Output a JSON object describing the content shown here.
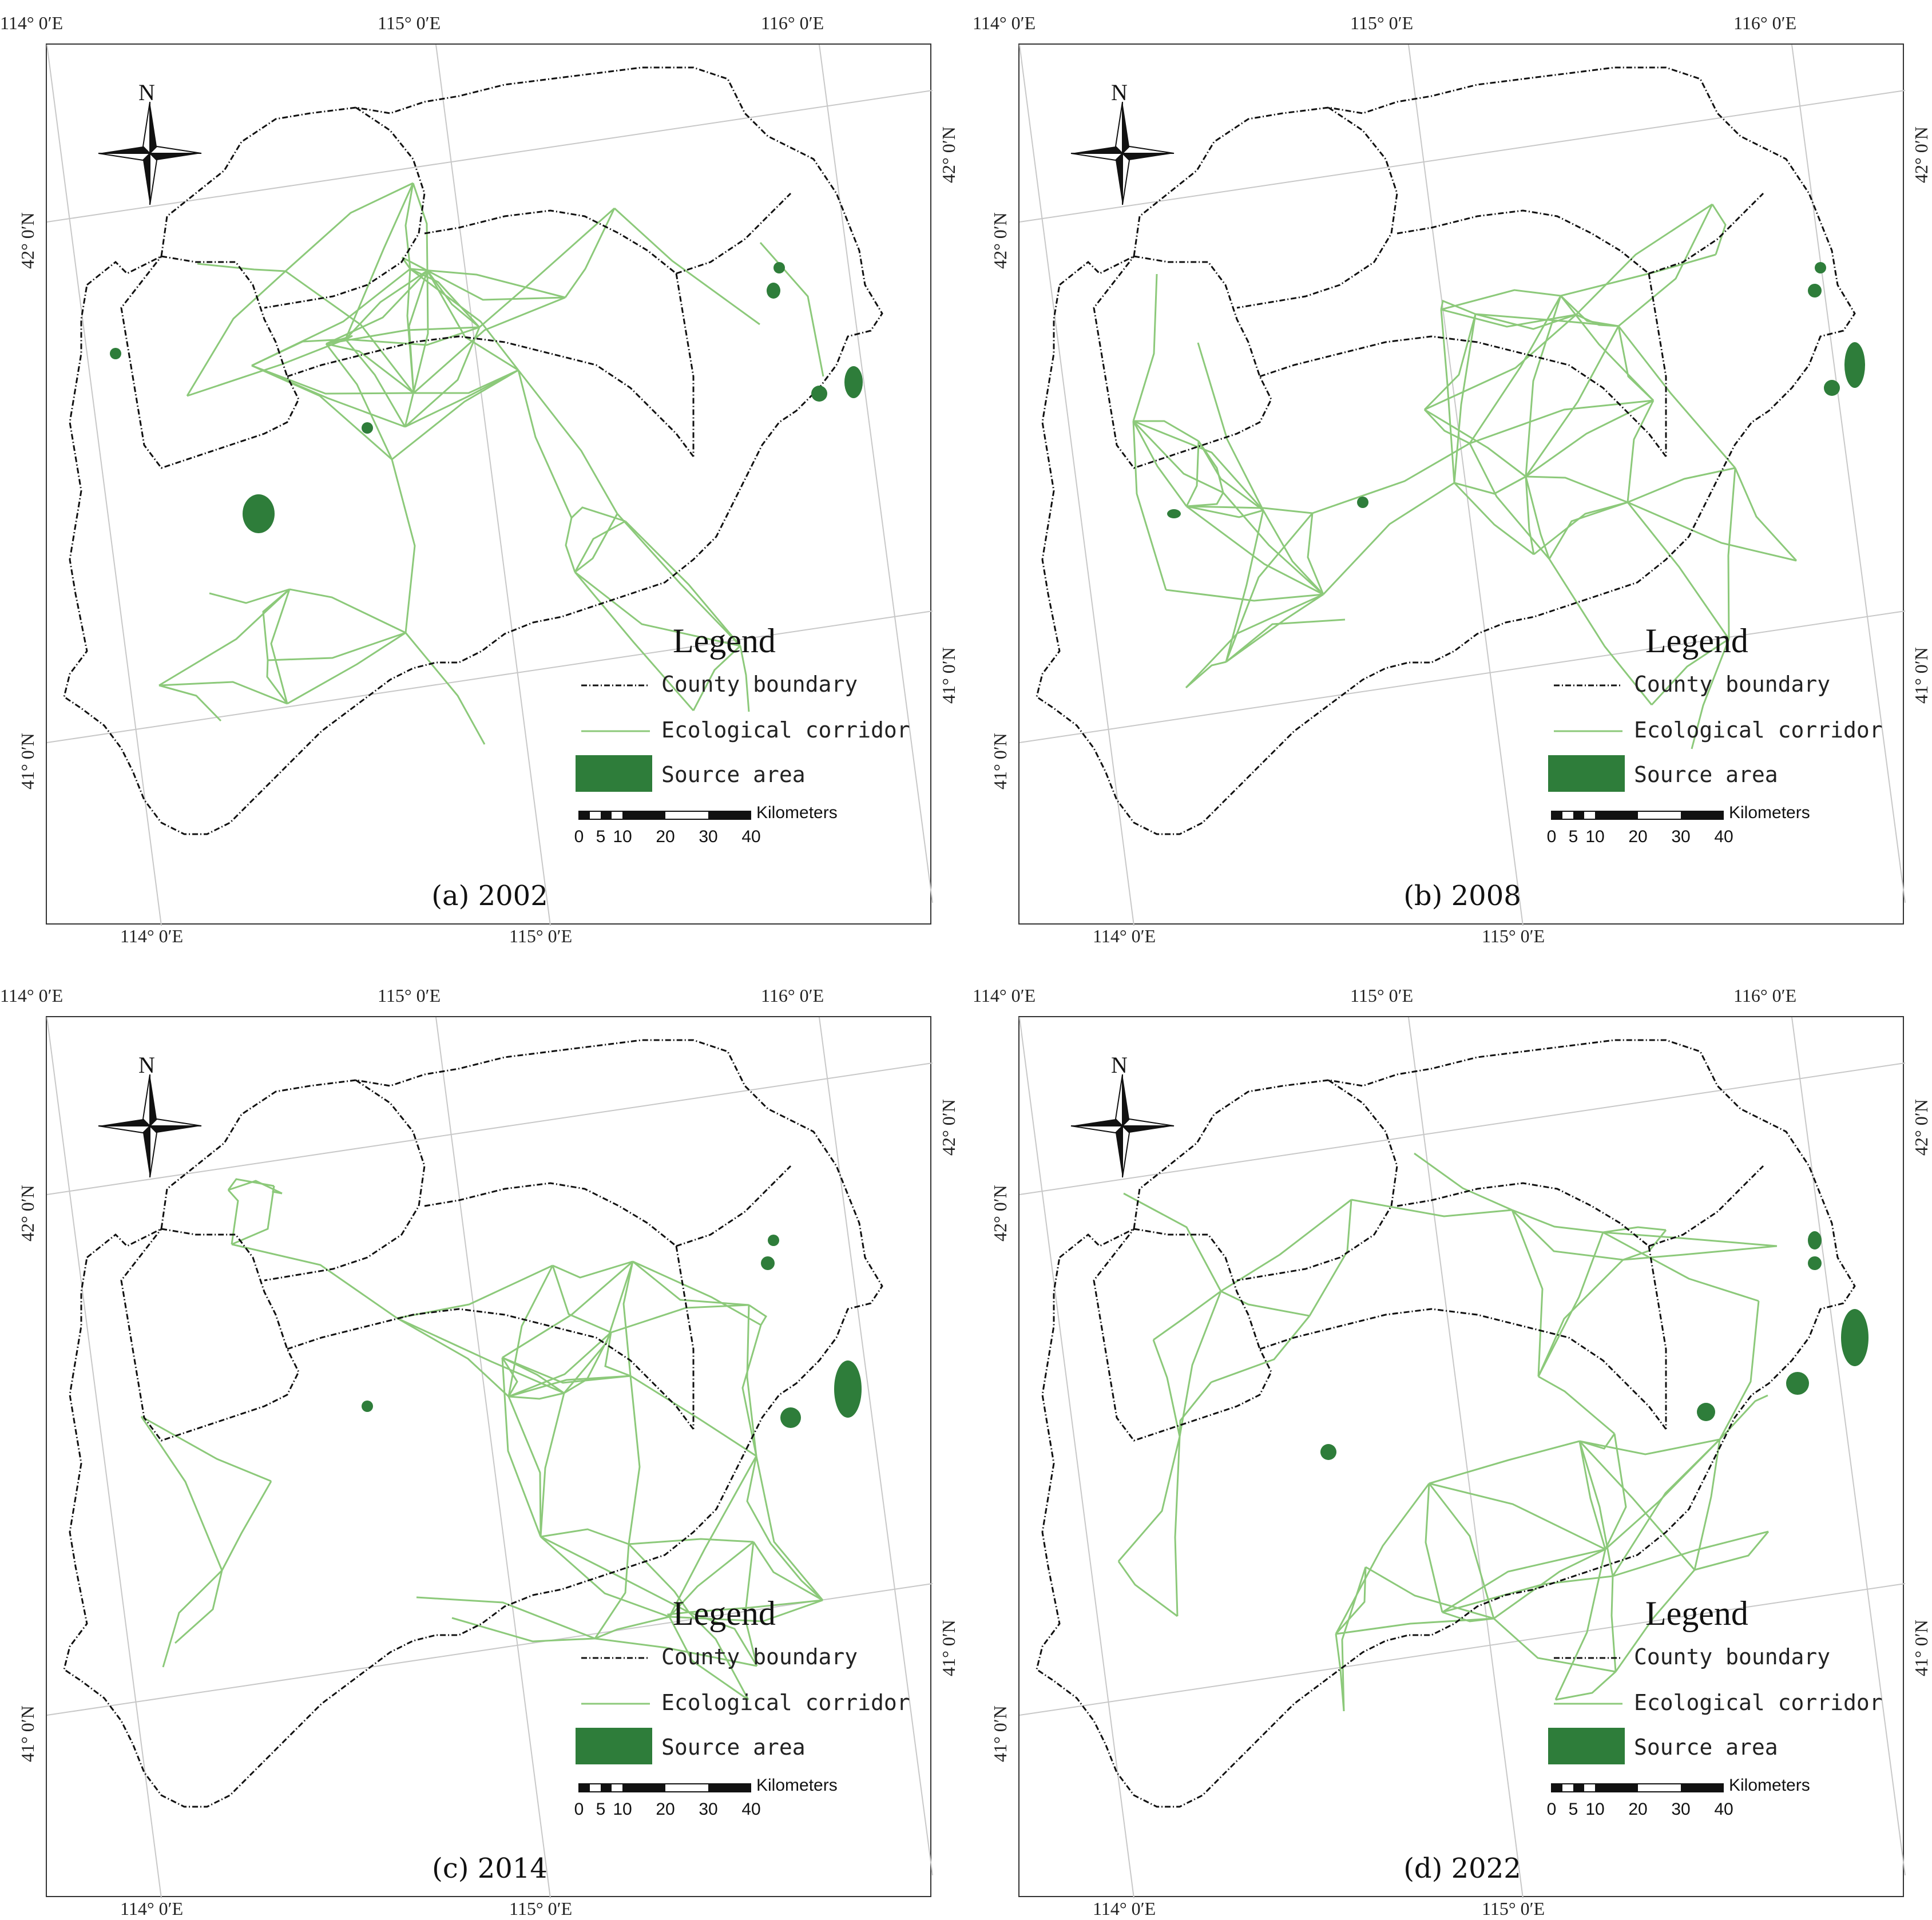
{
  "panels": [
    {
      "caption": "(a) 2002",
      "top_lon_labels": [
        "114° 0′E",
        "115° 0′E",
        "116° 0′E"
      ],
      "bottom_lon_labels": [
        "114° 0′E",
        "115° 0′E"
      ],
      "left_lat_labels": [
        "42° 0′N",
        "41° 0′N"
      ],
      "right_lat_labels": [
        "42° 0′N",
        "41° 0′N"
      ]
    },
    {
      "caption": "(b) 2008",
      "top_lon_labels": [
        "114° 0′E",
        "115° 0′E",
        "116° 0′E"
      ],
      "bottom_lon_labels": [
        "114° 0′E",
        "115° 0′E"
      ],
      "left_lat_labels": [
        "42° 0′N",
        "41° 0′N"
      ],
      "right_lat_labels": [
        "42° 0′N",
        "41° 0′N"
      ]
    },
    {
      "caption": "(c) 2014",
      "top_lon_labels": [
        "114° 0′E",
        "115° 0′E",
        "116° 0′E"
      ],
      "bottom_lon_labels": [
        "114° 0′E",
        "115° 0′E"
      ],
      "left_lat_labels": [
        "42° 0′N",
        "41° 0′N"
      ],
      "right_lat_labels": [
        "42° 0′N",
        "41° 0′N"
      ]
    },
    {
      "caption": "(d) 2022",
      "top_lon_labels": [
        "114° 0′E",
        "115° 0′E",
        "116° 0′E"
      ],
      "bottom_lon_labels": [
        "114° 0′E",
        "115° 0′E"
      ],
      "left_lat_labels": [
        "42° 0′N",
        "41° 0′N"
      ],
      "right_lat_labels": [
        "42° 0′N",
        "41° 0′N"
      ]
    }
  ],
  "north_arrow": {
    "label": "N",
    "icon": "north-arrow-icon"
  },
  "legend": {
    "title": "Legend",
    "items": [
      {
        "label": "County boundary",
        "symbol": "dash-dot-line",
        "color": "#111111"
      },
      {
        "label": "Ecological corridor",
        "symbol": "line",
        "color": "#8cc97a"
      },
      {
        "label": "Source area",
        "symbol": "fill",
        "color": "#2e7d3a"
      }
    ],
    "scale_bar": {
      "units": "Kilometers",
      "ticks": [
        "0",
        "5",
        "10",
        "20",
        "30",
        "40"
      ]
    }
  },
  "colors": {
    "corridor": "#8cc97a",
    "source": "#2e7d3a",
    "boundary": "#111111",
    "graticule": "#c8c8c8"
  }
}
